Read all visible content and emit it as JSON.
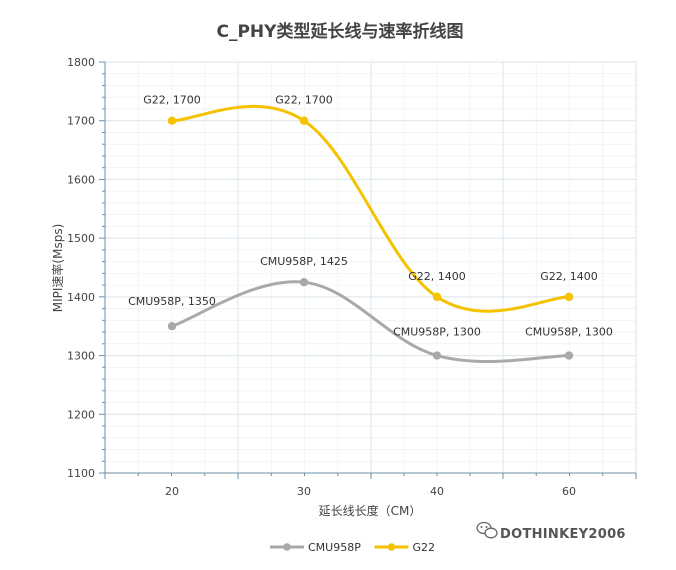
{
  "chart_data": {
    "type": "line",
    "title": "C_PHY类型延长线与速率折线图",
    "xlabel": "延长线长度（CM）",
    "ylabel": "MIPI速率(Msps)",
    "categories": [
      "20",
      "30",
      "40",
      "60"
    ],
    "ylim": [
      1100,
      1800
    ],
    "yticks": [
      1100,
      1200,
      1300,
      1400,
      1500,
      1600,
      1700,
      1800
    ],
    "grid": true,
    "legend_position": "bottom",
    "series": [
      {
        "name": "CMU958P",
        "values": [
          1350,
          1425,
          1300,
          1300
        ],
        "labels": [
          "CMU958P, 1350",
          "CMU958P, 1425",
          "CMU958P, 1300",
          "CMU958P, 1300"
        ],
        "color": "#a9a9a9"
      },
      {
        "name": "G22",
        "values": [
          1700,
          1700,
          1400,
          1400
        ],
        "labels": [
          "G22, 1700",
          "G22, 1700",
          "G22, 1400",
          "G22, 1400"
        ],
        "color": "#f5c200"
      }
    ]
  },
  "watermark": {
    "text": "DOTHINKEY2006",
    "icon": "wechat-icon"
  },
  "colors": {
    "grid": "#d9e4ec",
    "axis": "#6c8fa8",
    "text": "#444444"
  }
}
